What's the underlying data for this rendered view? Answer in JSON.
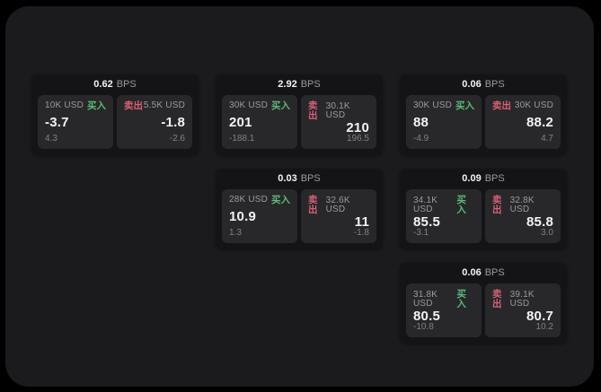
{
  "colors": {
    "page_bg": "#000000",
    "panel_bg": "#1b1b1d",
    "card_bg": "#141416",
    "tile_bg": "#28282a",
    "buy_color": "#5aba78",
    "sell_color": "#d95f77",
    "text_primary": "#f3f3f4",
    "text_secondary": "#9a9a9f",
    "text_muted": "#828287"
  },
  "labels": {
    "bps_suffix": "BPS",
    "buy": "买入",
    "sell": "卖出"
  },
  "cards": [
    {
      "bps": "0.62",
      "buy": {
        "notional": "10K USD",
        "price": "-3.7",
        "delta": "4.3"
      },
      "sell": {
        "notional": "5.5K USD",
        "price": "-1.8",
        "delta": "-2.6"
      }
    },
    {
      "bps": "2.92",
      "buy": {
        "notional": "30K USD",
        "price": "201",
        "delta": "-188.1"
      },
      "sell": {
        "notional": "30.1K USD",
        "price": "210",
        "delta": "196.5"
      }
    },
    {
      "bps": "0.06",
      "buy": {
        "notional": "30K USD",
        "price": "88",
        "delta": "-4.9"
      },
      "sell": {
        "notional": "30K USD",
        "price": "88.2",
        "delta": "4.7"
      }
    },
    {
      "bps": "0.03",
      "buy": {
        "notional": "28K USD",
        "price": "10.9",
        "delta": "1.3"
      },
      "sell": {
        "notional": "32.6K USD",
        "price": "11",
        "delta": "-1.8"
      }
    },
    {
      "bps": "0.09",
      "buy": {
        "notional": "34.1K USD",
        "price": "85.5",
        "delta": "-3.1"
      },
      "sell": {
        "notional": "32.8K USD",
        "price": "85.8",
        "delta": "3.0"
      }
    },
    {
      "bps": "0.06",
      "buy": {
        "notional": "31.8K USD",
        "price": "80.5",
        "delta": "-10.8"
      },
      "sell": {
        "notional": "39.1K USD",
        "price": "80.7",
        "delta": "10.2"
      }
    }
  ]
}
